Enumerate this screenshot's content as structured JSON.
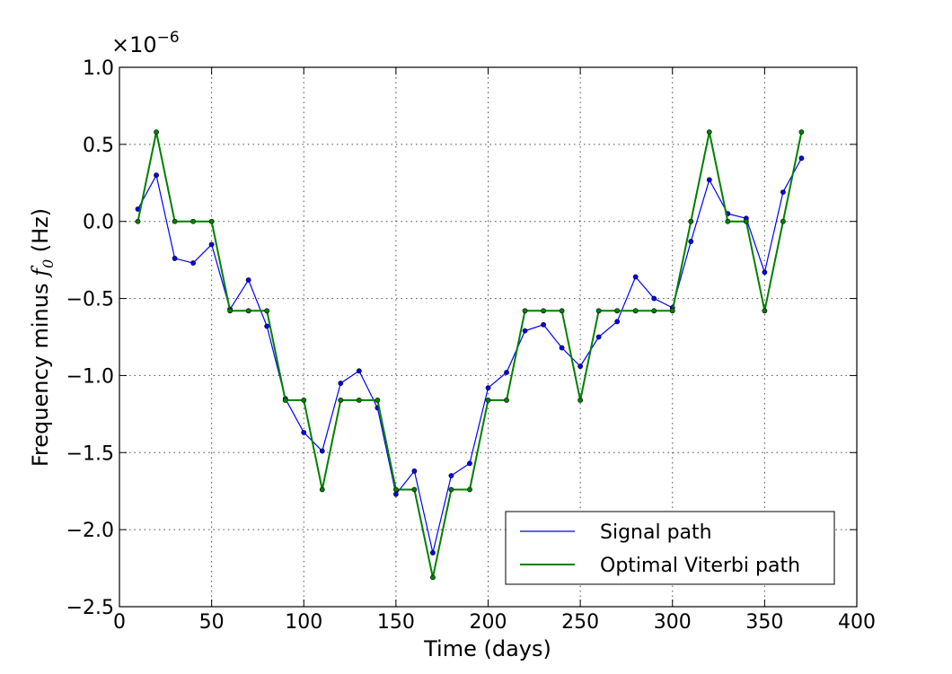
{
  "chart_data": {
    "type": "line",
    "xlabel": "Time (days)",
    "ylabel_main": "Frequency minus ",
    "ylabel_symbol": "f",
    "ylabel_subscript": "0",
    "ylabel_unit": " (Hz)",
    "y_multiplier": "×10",
    "y_multiplier_exp": "−6",
    "xlim": [
      0,
      400
    ],
    "ylim": [
      -2.5,
      1.0
    ],
    "x_ticks": [
      0,
      50,
      100,
      150,
      200,
      250,
      300,
      350,
      400
    ],
    "x_tick_labels": [
      "0",
      "50",
      "100",
      "150",
      "200",
      "250",
      "300",
      "350",
      "400"
    ],
    "y_ticks": [
      1.0,
      0.5,
      0.0,
      -0.5,
      -1.0,
      -1.5,
      -2.0,
      -2.5
    ],
    "y_tick_labels": [
      "1.0",
      "0.5",
      "0.0",
      "−0.5",
      "−1.0",
      "−1.5",
      "−2.0",
      "−2.5"
    ],
    "grid": true,
    "legend_position": "bottom-right",
    "x": [
      10,
      20,
      30,
      40,
      50,
      60,
      70,
      80,
      90,
      100,
      110,
      120,
      130,
      140,
      150,
      160,
      170,
      180,
      190,
      200,
      210,
      220,
      230,
      240,
      250,
      260,
      270,
      280,
      290,
      300,
      310,
      320,
      330,
      340,
      350,
      360,
      370
    ],
    "series": [
      {
        "name": "Signal path",
        "color": "#0000ff",
        "stroke_width": 1.2,
        "values": [
          0.08,
          0.3,
          -0.24,
          -0.27,
          -0.15,
          -0.57,
          -0.38,
          -0.68,
          -1.15,
          -1.37,
          -1.49,
          -1.05,
          -0.97,
          -1.21,
          -1.77,
          -1.62,
          -2.15,
          -1.65,
          -1.57,
          -1.08,
          -0.98,
          -0.71,
          -0.67,
          -0.82,
          -0.94,
          -0.75,
          -0.65,
          -0.36,
          -0.5,
          -0.56,
          -0.13,
          0.27,
          0.05,
          0.02,
          -0.33,
          0.19,
          0.41
        ]
      },
      {
        "name": "Optimal Viterbi path",
        "color": "#008000",
        "stroke_width": 2,
        "values": [
          0.0,
          0.58,
          0.0,
          0.0,
          0.0,
          -0.58,
          -0.58,
          -0.58,
          -1.16,
          -1.16,
          -1.74,
          -1.16,
          -1.16,
          -1.16,
          -1.74,
          -1.74,
          -2.31,
          -1.74,
          -1.74,
          -1.16,
          -1.16,
          -0.58,
          -0.58,
          -0.58,
          -1.16,
          -0.58,
          -0.58,
          -0.58,
          -0.58,
          -0.58,
          0.0,
          0.58,
          0.0,
          0.0,
          -0.58,
          0.0,
          0.58
        ]
      }
    ]
  }
}
